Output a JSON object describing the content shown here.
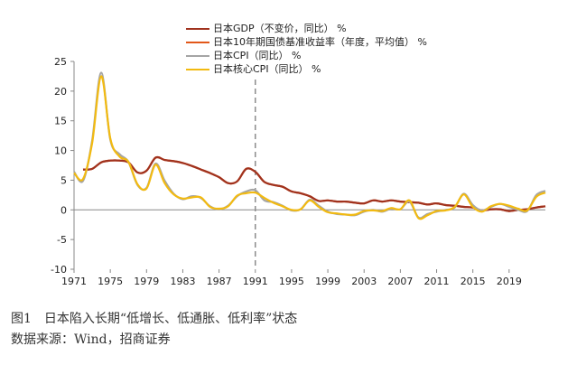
{
  "chart_data": {
    "type": "line",
    "title": "",
    "xlabel": "",
    "ylabel": "",
    "xlim": [
      1971,
      2023
    ],
    "ylim": [
      -10,
      25
    ],
    "x_ticks": [
      1971,
      1975,
      1979,
      1983,
      1987,
      1991,
      1995,
      1999,
      2003,
      2007,
      2011,
      2015,
      2019
    ],
    "y_ticks": [
      -10,
      -5,
      0,
      5,
      10,
      15,
      20,
      25
    ],
    "reference_line_x": 1991,
    "grid": false,
    "legend_position": "top",
    "series": [
      {
        "name": "日本GDP（不变价，同比） %",
        "color": "#A0321E",
        "x": [
          1972,
          1973,
          1974,
          1975,
          1976,
          1977,
          1978,
          1979,
          1980,
          1981,
          1982,
          1983,
          1984,
          1985,
          1986,
          1987,
          1988,
          1989,
          1990,
          1991,
          1992,
          1993,
          1994,
          1995,
          1996,
          1997,
          1998,
          1999,
          2000,
          2001,
          2002,
          2003,
          2004,
          2005,
          2006,
          2007,
          2008,
          2009,
          2010,
          2011,
          2012,
          2013,
          2014,
          2015,
          2016,
          2017,
          2018,
          2019,
          2020,
          2021,
          2022,
          2023
        ],
        "values": [
          6.8,
          6.9,
          8.0,
          8.3,
          8.3,
          8.0,
          6.3,
          6.6,
          8.8,
          8.4,
          8.2,
          7.9,
          7.4,
          6.8,
          6.2,
          5.5,
          4.5,
          4.8,
          6.9,
          6.4,
          4.7,
          4.2,
          3.9,
          3.1,
          2.8,
          2.3,
          1.5,
          1.6,
          1.4,
          1.4,
          1.2,
          1.1,
          1.6,
          1.4,
          1.6,
          1.4,
          1.3,
          1.2,
          0.9,
          1.1,
          0.8,
          0.7,
          0.5,
          0.4,
          -0.1,
          0.1,
          0.1,
          -0.2,
          0.0,
          0.1,
          0.4,
          0.6
        ]
      },
      {
        "name": "日本10年期国债基准收益率（年度，平均值） %",
        "color": "#E2581A",
        "x": [
          1972,
          1973,
          1974,
          1975,
          1976,
          1977,
          1978,
          1979,
          1980,
          1981,
          1982,
          1983,
          1984,
          1985,
          1986,
          1987,
          1988,
          1989,
          1990,
          1991,
          1992,
          1993,
          1994,
          1995,
          1996,
          1997,
          1998,
          1999,
          2000,
          2001,
          2002,
          2003,
          2004,
          2005,
          2006,
          2007,
          2008,
          2009,
          2010,
          2011,
          2012,
          2013,
          2014,
          2015,
          2016,
          2017,
          2018,
          2019,
          2020,
          2021,
          2022,
          2023
        ],
        "values": [
          6.8,
          6.9,
          8.0,
          8.3,
          8.3,
          8.0,
          6.3,
          6.6,
          8.8,
          8.4,
          8.2,
          7.9,
          7.4,
          6.8,
          6.2,
          5.5,
          4.5,
          4.8,
          6.9,
          6.4,
          4.7,
          4.2,
          3.9,
          3.1,
          2.8,
          2.3,
          1.5,
          1.6,
          1.4,
          1.4,
          1.2,
          1.1,
          1.6,
          1.4,
          1.6,
          1.4,
          1.3,
          1.2,
          0.9,
          1.1,
          0.8,
          0.7,
          0.5,
          0.4,
          -0.1,
          0.1,
          0.1,
          -0.2,
          0.0,
          0.1,
          0.4,
          0.6
        ]
      },
      {
        "name": "日本CPI（同比） %",
        "color": "#A5A5A5",
        "x": [
          1971,
          1972,
          1973,
          1974,
          1975,
          1976,
          1977,
          1978,
          1979,
          1980,
          1981,
          1982,
          1983,
          1984,
          1985,
          1986,
          1987,
          1988,
          1989,
          1990,
          1991,
          1992,
          1993,
          1994,
          1995,
          1996,
          1997,
          1998,
          1999,
          2000,
          2001,
          2002,
          2003,
          2004,
          2005,
          2006,
          2007,
          2008,
          2009,
          2010,
          2011,
          2012,
          2013,
          2014,
          2015,
          2016,
          2017,
          2018,
          2019,
          2020,
          2021,
          2022,
          2023
        ],
        "values": [
          6.4,
          4.9,
          11.7,
          23.1,
          11.8,
          9.4,
          8.1,
          4.2,
          3.7,
          7.8,
          4.9,
          2.7,
          1.8,
          2.3,
          2.0,
          0.6,
          0.1,
          0.7,
          2.3,
          3.1,
          3.3,
          1.6,
          1.3,
          0.7,
          -0.1,
          0.1,
          1.7,
          0.7,
          -0.3,
          -0.7,
          -0.8,
          -0.9,
          -0.3,
          0.0,
          -0.3,
          0.2,
          0.1,
          1.4,
          -1.3,
          -0.7,
          -0.3,
          0.0,
          0.4,
          2.7,
          0.8,
          -0.1,
          0.5,
          1.0,
          0.5,
          0.0,
          -0.2,
          2.5,
          3.2
        ]
      },
      {
        "name": "日本核心CPI（同比） %",
        "color": "#F2BA11",
        "x": [
          1971,
          1972,
          1973,
          1974,
          1975,
          1976,
          1977,
          1978,
          1979,
          1980,
          1981,
          1982,
          1983,
          1984,
          1985,
          1986,
          1987,
          1988,
          1989,
          1990,
          1991,
          1992,
          1993,
          1994,
          1995,
          1996,
          1997,
          1998,
          1999,
          2000,
          2001,
          2002,
          2003,
          2004,
          2005,
          2006,
          2007,
          2008,
          2009,
          2010,
          2011,
          2012,
          2013,
          2014,
          2015,
          2016,
          2017,
          2018,
          2019,
          2020,
          2021,
          2022,
          2023
        ],
        "values": [
          6.2,
          5.2,
          11.3,
          22.5,
          12.0,
          9.0,
          8.1,
          4.3,
          3.6,
          7.6,
          4.5,
          2.6,
          1.9,
          2.1,
          2.1,
          0.5,
          0.2,
          0.6,
          2.4,
          2.8,
          2.9,
          2.0,
          1.2,
          0.6,
          0.0,
          0.1,
          1.6,
          0.5,
          -0.4,
          -0.6,
          -0.8,
          -0.8,
          -0.2,
          -0.1,
          -0.2,
          0.3,
          0.1,
          1.6,
          -1.4,
          -0.9,
          -0.2,
          -0.1,
          0.5,
          2.6,
          0.5,
          -0.3,
          0.6,
          1.0,
          0.7,
          0.2,
          -0.1,
          2.2,
          2.9
        ]
      }
    ],
    "gdp_series": {
      "name": "日本GDP（不变价，同比） %",
      "color": "#A0321E",
      "x": [
        1972,
        1973,
        1974,
        1975,
        1976,
        1977,
        1978,
        1979,
        1980,
        1981,
        1982,
        1983,
        1984,
        1985,
        1986,
        1987,
        1988,
        1989,
        1990,
        1991,
        1992,
        1993,
        1994,
        1995,
        1996,
        1997,
        1998,
        1999,
        2000,
        2001,
        2002,
        2003,
        2004,
        2005,
        2006,
        2007,
        2008,
        2009,
        2010,
        2011,
        2012,
        2013,
        2014,
        2015,
        2016,
        2017,
        2018,
        2019,
        2020,
        2021,
        2022,
        2023
      ],
      "values": [
        6.8,
        6.9,
        8.0,
        8.3,
        8.3,
        8.0,
        6.3,
        6.6,
        8.8,
        8.4,
        8.2,
        7.9,
        7.4,
        6.8,
        6.2,
        5.5,
        4.5,
        4.8,
        6.9,
        6.4,
        4.7,
        4.2,
        3.9,
        3.1,
        2.8,
        2.3,
        1.5,
        1.6,
        1.4,
        1.4,
        1.2,
        1.1,
        1.6,
        1.4,
        1.6,
        1.4,
        1.3,
        1.2,
        0.9,
        1.1,
        0.8,
        0.7,
        0.5,
        0.4,
        -0.1,
        0.1,
        0.1,
        -0.2,
        0.0,
        0.1,
        0.4,
        0.6
      ]
    }
  },
  "figure": {
    "caption": "图1　日本陷入长期“低增长、低通胀、低利率”状态",
    "source": "数据来源：Wind，招商证券"
  }
}
